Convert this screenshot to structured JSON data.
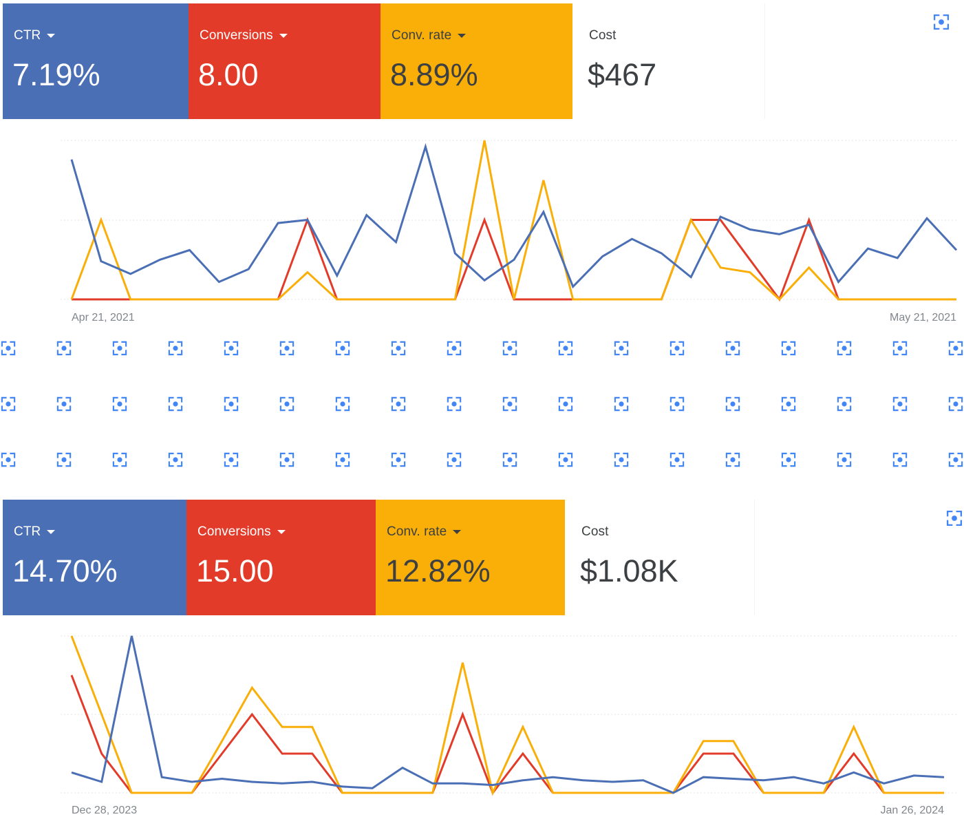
{
  "panels": [
    {
      "metrics": [
        {
          "label": "CTR",
          "value": "7.19%",
          "dropdown": true
        },
        {
          "label": "Conversions",
          "value": "8.00",
          "dropdown": true
        },
        {
          "label": "Conv. rate",
          "value": "8.89%",
          "dropdown": true
        },
        {
          "label": "Cost",
          "value": "$467",
          "dropdown": false
        }
      ],
      "date_start": "Apr 21, 2021",
      "date_end": "May 21, 2021"
    },
    {
      "metrics": [
        {
          "label": "CTR",
          "value": "14.70%",
          "dropdown": true
        },
        {
          "label": "Conversions",
          "value": "15.00",
          "dropdown": true
        },
        {
          "label": "Conv. rate",
          "value": "12.82%",
          "dropdown": true
        },
        {
          "label": "Cost",
          "value": "$1.08K",
          "dropdown": false
        }
      ],
      "date_start": "Dec 28, 2023",
      "date_end": "Jan 26, 2024"
    }
  ],
  "colors": {
    "ctr": "#4a6fb5",
    "conversions": "#e23b2a",
    "conv_rate": "#f9ae08",
    "cost_text": "#3c4043",
    "tile_text_light": "#ffffff",
    "tile_text_dark": "#3c4043",
    "icon_blue": "#4285f4",
    "gridline": "#e6e6e6"
  },
  "icons": {
    "expand": "fullscreen-icon",
    "grid_item": "focus-frame-icon"
  },
  "chart_data": [
    {
      "type": "line",
      "x_range": [
        "Apr 21, 2021",
        "May 21, 2021"
      ],
      "points_per_series": 31,
      "ylim": [
        0,
        1
      ],
      "grid": true,
      "series": [
        {
          "metric": "CTR",
          "color": "#4a6fb5",
          "values": [
            0.88,
            0.24,
            0.16,
            0.25,
            0.31,
            0.11,
            0.19,
            0.48,
            0.5,
            0.15,
            0.53,
            0.36,
            0.96,
            0.29,
            0.12,
            0.25,
            0.55,
            0.08,
            0.27,
            0.38,
            0.29,
            0.14,
            0.52,
            0.44,
            0.41,
            0.47,
            0.11,
            0.32,
            0.26,
            0.51,
            0.31
          ]
        },
        {
          "metric": "Conversions",
          "color": "#e23b2a",
          "values": [
            0,
            0,
            0,
            0,
            0,
            0,
            0,
            0,
            0.5,
            0,
            0,
            0,
            0,
            0,
            0.5,
            0,
            0,
            0,
            0,
            0,
            0,
            0.5,
            0.5,
            0.25,
            0,
            0.5,
            0,
            0,
            0,
            0,
            0
          ]
        },
        {
          "metric": "Conv. rate",
          "color": "#f9ae08",
          "values": [
            0,
            0.5,
            0,
            0,
            0,
            0,
            0,
            0,
            0.17,
            0,
            0,
            0,
            0,
            0,
            1.0,
            0,
            0.75,
            0,
            0,
            0,
            0,
            0.5,
            0.2,
            0.17,
            0,
            0.2,
            0,
            0,
            0,
            0,
            0
          ]
        }
      ]
    },
    {
      "type": "line",
      "x_range": [
        "Dec 28, 2023",
        "Jan 26, 2024"
      ],
      "points_per_series": 30,
      "ylim": [
        0,
        1
      ],
      "grid": true,
      "series": [
        {
          "metric": "CTR",
          "color": "#4a6fb5",
          "values": [
            0.13,
            0.07,
            1.0,
            0.1,
            0.07,
            0.09,
            0.07,
            0.06,
            0.07,
            0.04,
            0.03,
            0.16,
            0.06,
            0.06,
            0.05,
            0.08,
            0.1,
            0.08,
            0.07,
            0.08,
            0.0,
            0.1,
            0.09,
            0.08,
            0.1,
            0.06,
            0.13,
            0.06,
            0.11,
            0.1
          ]
        },
        {
          "metric": "Conversions",
          "color": "#e23b2a",
          "values": [
            0.75,
            0.25,
            0,
            0,
            0,
            0.25,
            0.5,
            0.25,
            0.25,
            0,
            0,
            0,
            0,
            0.5,
            0,
            0.25,
            0,
            0,
            0,
            0,
            0,
            0.25,
            0.25,
            0,
            0,
            0,
            0.25,
            0,
            0,
            0
          ]
        },
        {
          "metric": "Conv. rate",
          "color": "#f9ae08",
          "values": [
            1.0,
            0.5,
            0,
            0,
            0,
            0.33,
            0.67,
            0.42,
            0.42,
            0,
            0,
            0,
            0,
            0.83,
            0,
            0.42,
            0,
            0,
            0,
            0,
            0,
            0.33,
            0.33,
            0,
            0,
            0,
            0.42,
            0,
            0,
            0
          ]
        }
      ]
    }
  ]
}
